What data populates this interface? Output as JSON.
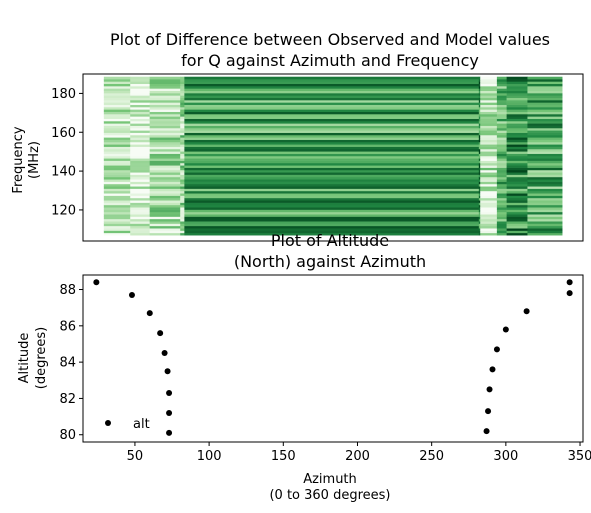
{
  "chart_data": [
    {
      "type": "heatmap",
      "title_line1": "Plot of Difference between Observed and Model values",
      "title_line2": "for Q against Azimuth and Frequency",
      "ylabel_line1": "Frequency",
      "ylabel_line2": "(MHz)",
      "xlabel": "",
      "ylim": [
        104,
        190
      ],
      "xlim": [
        0,
        360
      ],
      "yticks": [
        120,
        140,
        160,
        180
      ],
      "x_extent": [
        15,
        345
      ],
      "y_extent": [
        107,
        188
      ],
      "colormap": [
        "#f7fcf5",
        "#c7e9c0",
        "#74c476",
        "#238b45",
        "#00441b"
      ],
      "column_breaks": [
        {
          "x": 15,
          "value": 0.25
        },
        {
          "x": 34,
          "value": 0.15
        },
        {
          "x": 48,
          "value": 0.3
        },
        {
          "x": 70,
          "value": 0.35
        },
        {
          "x": 73,
          "value": 0.65
        },
        {
          "x": 285,
          "value": 0.75
        },
        {
          "x": 286,
          "value": 0.25
        },
        {
          "x": 298,
          "value": 0.55
        },
        {
          "x": 305,
          "value": 0.7
        },
        {
          "x": 320,
          "value": 0.6
        }
      ]
    },
    {
      "type": "scatter",
      "title_line1": "Plot of Altitude",
      "title_line2": "(North) against Azimuth",
      "xlabel_line1": "Azimuth",
      "xlabel_line2": "(0 to 360 degrees)",
      "ylabel_line1": "Altitude",
      "ylabel_line2": "(degrees)",
      "xlim": [
        15,
        352
      ],
      "ylim": [
        79.6,
        88.8
      ],
      "xticks": [
        50,
        100,
        150,
        200,
        250,
        300,
        350
      ],
      "yticks": [
        80,
        82,
        84,
        86,
        88
      ],
      "legend": {
        "label": "alt",
        "position": "lower left"
      },
      "series": [
        {
          "name": "alt",
          "x": [
            24,
            48,
            60,
            67,
            70,
            72,
            73,
            73,
            73,
            287,
            288,
            289,
            291,
            294,
            300,
            314,
            343
          ],
          "y": [
            88.4,
            87.7,
            86.7,
            85.6,
            84.5,
            83.5,
            82.3,
            81.2,
            80.1,
            80.2,
            81.3,
            82.5,
            83.6,
            84.7,
            85.8,
            86.8,
            87.8
          ]
        },
        {
          "name": "",
          "x": [
            343
          ],
          "y": [
            88.4
          ]
        }
      ]
    }
  ]
}
